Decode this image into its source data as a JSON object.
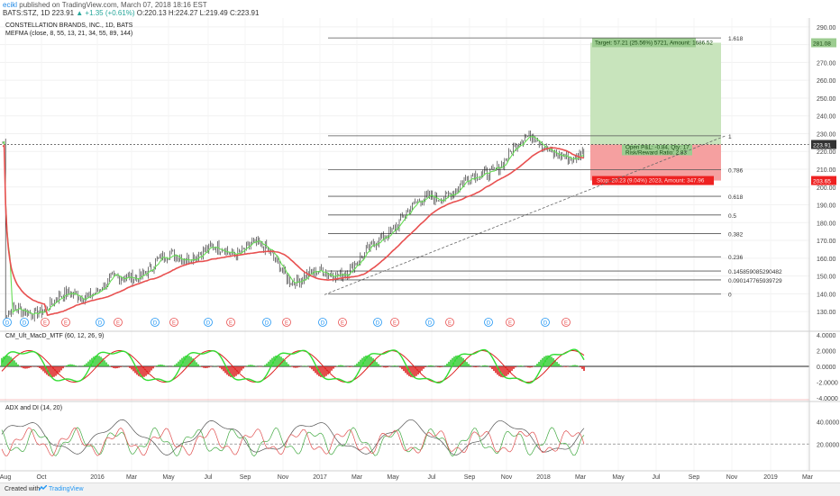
{
  "header": {
    "author": "ecikl",
    "published": " published on TradingView.com, March 07, 2018 18:16 EST",
    "ticker_line": "BATS:STZ, 1D",
    "last": "223.91",
    "change": "▲ +1.35 (+0.61%)",
    "ohlc": "O:220.13 H:224.27 L:219.49 C:223.91"
  },
  "chart_data": [
    {
      "type": "line",
      "title": "CONSTELLATION BRANDS, INC., 1D, BATS",
      "indicator": "MEFMA (close, 8, 55, 13, 21, 34, 55, 89, 144)",
      "series": [
        {
          "name": "",
          "values": [
            {
              "x": "2015-08",
              "y": 127
            },
            {
              "x": "2015-10",
              "y": 133
            },
            {
              "x": "2015-12",
              "y": 140
            },
            {
              "x": "2016-02",
              "y": 147
            },
            {
              "x": "2016-04",
              "y": 157
            },
            {
              "x": "2016-06",
              "y": 164
            },
            {
              "x": "2016-08",
              "y": 163
            },
            {
              "x": "2016-09",
              "y": 170
            },
            {
              "x": "2016-11",
              "y": 150
            },
            {
              "x": "2017-01",
              "y": 150
            },
            {
              "x": "2017-03",
              "y": 160
            },
            {
              "x": "2017-05",
              "y": 185
            },
            {
              "x": "2017-07",
              "y": 196
            },
            {
              "x": "2017-09",
              "y": 205
            },
            {
              "x": "2017-11",
              "y": 222
            },
            {
              "x": "2017-12",
              "y": 229
            },
            {
              "x": "2018-02",
              "y": 212
            },
            {
              "x": "2018-03",
              "y": 223.91
            }
          ]
        }
      ],
      "y_ticks": [
        "130.00",
        "140.00",
        "150.00",
        "160.00",
        "170.00",
        "180.00",
        "190.00",
        "200.00",
        "210.00",
        "220.00",
        "230.00",
        "240.00",
        "250.00",
        "260.00",
        "270.00",
        "280.00",
        "290.00"
      ],
      "ylim": [
        125,
        295
      ],
      "x_ticks": [
        "Aug",
        "Oct",
        "2016",
        "Mar",
        "May",
        "Jul",
        "Sep",
        "Nov",
        "2017",
        "Mar",
        "May",
        "Jul",
        "Sep",
        "Nov",
        "2018",
        "Mar",
        "May",
        "Jul",
        "Sep",
        "Nov",
        "2019",
        "Mar"
      ],
      "price_labels": {
        "target": "281.08",
        "last": "223.91",
        "stop": "203.65"
      },
      "fib_levels": [
        {
          "label": "1.618",
          "price": 283.8
        },
        {
          "label": "1",
          "price": 228.8
        },
        {
          "label": "0.786",
          "price": 209.8
        },
        {
          "label": "0.618",
          "price": 194.8
        },
        {
          "label": "0.5",
          "price": 184.3
        },
        {
          "label": "0.382",
          "price": 173.8
        },
        {
          "label": "0.236",
          "price": 160.8
        },
        {
          "label": "0.145859085290482",
          "price": 152.8
        },
        {
          "label": "0.090147765939729",
          "price": 147.8
        },
        {
          "label": "0",
          "price": 139.8
        }
      ],
      "position": {
        "target": "Target: 57.21 (25.56%) 5721, Amount: 1686.52",
        "open": "Open P&L: -0.84, Qty: 17",
        "ratio": "Risk/Reward Ratio: 2.83",
        "stop": "Stop: 20.23 (9.04%) 2023, Amount: 347.96",
        "entry_price": 223.9,
        "target_price": 281.1,
        "stop_price": 203.65
      },
      "events": [
        "D",
        "D",
        "E",
        "E",
        "D",
        "E",
        "D",
        "E",
        "D",
        "E",
        "D",
        "E",
        "D",
        "E",
        "D",
        "E",
        "D",
        "E",
        "D",
        "E",
        "D",
        "E"
      ],
      "colors": {
        "price": "#1a1a1a",
        "ma_fast": "#66dd55",
        "ma_slow": "#e85050",
        "profit": "#c8e4bc",
        "loss": "#f5a0a0",
        "earnings": "#e85050",
        "dividend": "#2196f3"
      }
    },
    {
      "type": "bar",
      "title": "CM_Ult_MacD_MTF (60, 12, 26, 9)",
      "y_ticks": [
        "4.0000",
        "2.0000",
        "0.0000",
        "-2.0000",
        "-4.0000"
      ],
      "ylim": [
        -4,
        4
      ],
      "colors": {
        "pos": "#33cc33",
        "neg": "#dd2222",
        "macd": "#33dd33",
        "signal": "#dd2222"
      }
    },
    {
      "type": "line",
      "title": "ADX and DI (14, 20)",
      "y_ticks": [
        "40.0000",
        "20.0000"
      ],
      "ylim": [
        0,
        55
      ],
      "series": [
        {
          "name": "",
          "color": "#555555"
        },
        {
          "name": "",
          "color": "#44aa44"
        },
        {
          "name": "",
          "color": "#e05050"
        }
      ]
    }
  ],
  "footer": {
    "created": "Created with",
    "brand": "TradingView"
  }
}
